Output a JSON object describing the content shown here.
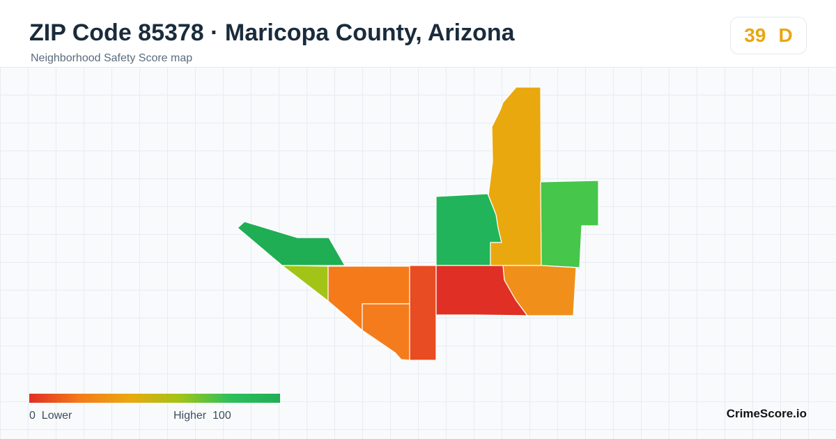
{
  "header": {
    "title": "ZIP Code 85378 · Maricopa County, Arizona",
    "subtitle": "Neighborhood Safety Score map"
  },
  "score_badge": {
    "score": "39",
    "grade": "D",
    "color": "#e8a70f"
  },
  "map": {
    "regions": [
      {
        "name": "northwest-strip",
        "color": "#1fae54"
      },
      {
        "name": "west-wedge",
        "color": "#a2c416"
      },
      {
        "name": "central-west",
        "color": "#f57a19"
      },
      {
        "name": "south-central",
        "color": "#f47c1c"
      },
      {
        "name": "south-strip",
        "color": "#e84c22"
      },
      {
        "name": "central-north",
        "color": "#22b45a"
      },
      {
        "name": "central",
        "color": "#e02f24"
      },
      {
        "name": "north-tall",
        "color": "#eaa80f"
      },
      {
        "name": "east-north",
        "color": "#46c64b"
      },
      {
        "name": "east-south",
        "color": "#f0901a"
      }
    ]
  },
  "legend": {
    "low_value": "0",
    "low_label": "Lower",
    "high_label": "Higher",
    "high_value": "100",
    "colors": [
      "#e02f24",
      "#f57a19",
      "#eaa80f",
      "#a2c416",
      "#2cc05c",
      "#1fae54"
    ]
  },
  "brand": "CrimeScore.io"
}
